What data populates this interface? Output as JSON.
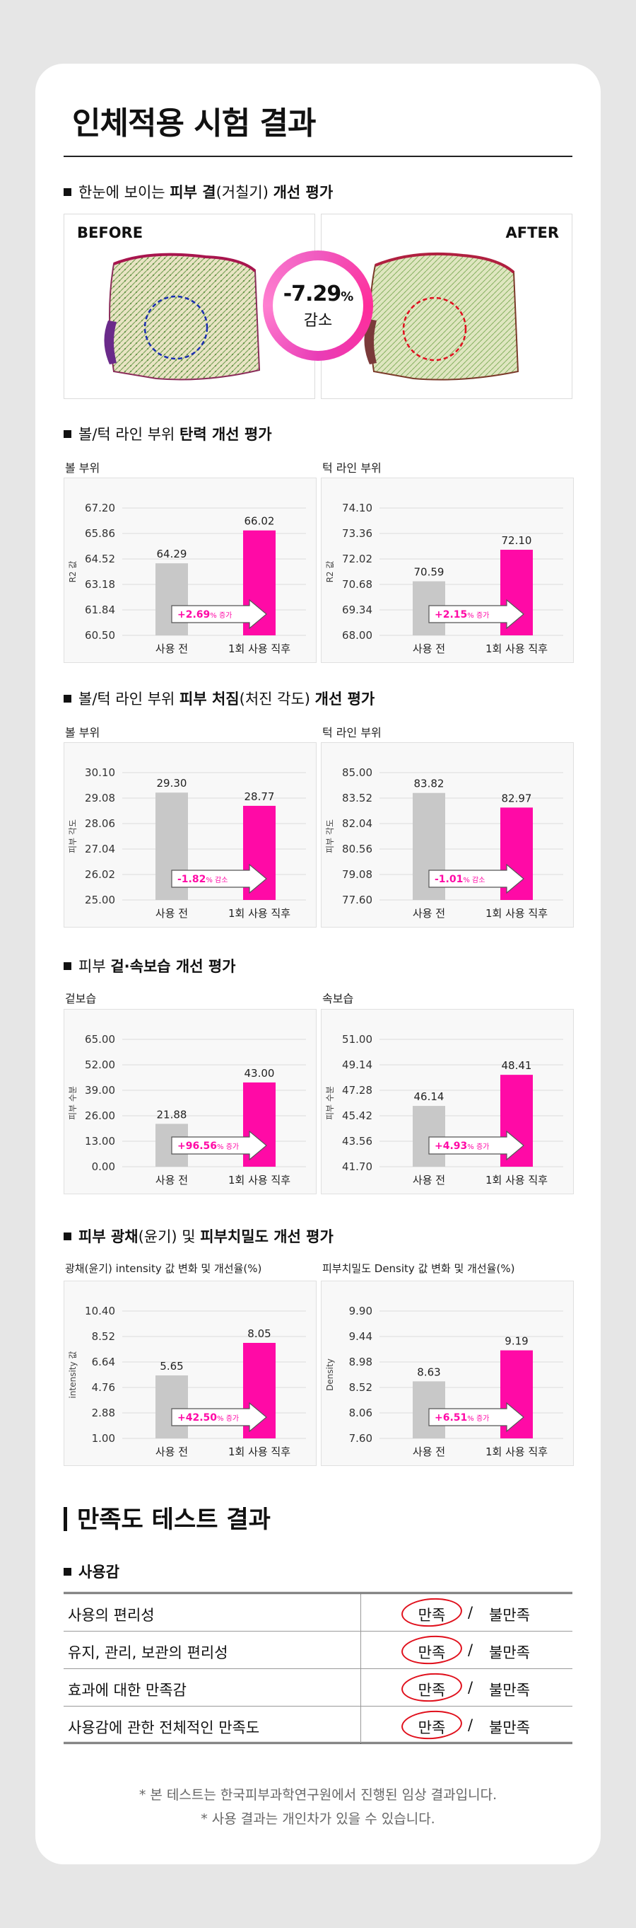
{
  "page_title": "인체적용 시험 결과",
  "sec1": {
    "pre": "한눈에 보이는 ",
    "b1": "피부 결",
    "mid": "(거칠기) ",
    "b2": "개선 평가"
  },
  "before_label": "BEFORE",
  "after_label": "AFTER",
  "badge": {
    "value": "-7.29",
    "unit": "%",
    "text": "감소"
  },
  "sec2": {
    "pre": "볼/턱 라인 부위 ",
    "b1": "탄력 개선 평가"
  },
  "sec3": {
    "pre": "볼/턱 라인 부위 ",
    "b1": "피부 처짐",
    "mid": "(처진 각도) ",
    "b2": "개선 평가"
  },
  "sec4": {
    "pre": "피부 ",
    "b1": "겉·속보습 개선 평가"
  },
  "sec5": {
    "b1": "피부 광채",
    "mid": "(윤기) 및 ",
    "b2": "피부치밀도 개선 평가"
  },
  "colors": {
    "accent": "#ff0aa6",
    "before_bar": "#c8c8c8"
  },
  "chart_data": [
    {
      "type": "bar",
      "subtitle": "볼 부위",
      "ylabel": "R2 값",
      "categories": [
        "사용 전",
        "1회 사용 직후"
      ],
      "values": [
        64.29,
        66.02
      ],
      "value_labels": [
        "64.29",
        "66.02"
      ],
      "ticks": [
        "67.20",
        "65.86",
        "64.52",
        "63.18",
        "61.84",
        "60.50"
      ],
      "ylim": [
        60.5,
        67.2
      ],
      "change": {
        "value": "+2.69",
        "unit": "%",
        "word": "증가"
      }
    },
    {
      "type": "bar",
      "subtitle": "턱 라인 부위",
      "ylabel": "R2 값",
      "categories": [
        "사용 전",
        "1회 사용 직후"
      ],
      "values": [
        70.59,
        72.1
      ],
      "value_labels": [
        "70.59",
        "72.10"
      ],
      "ticks": [
        "74.10",
        "73.36",
        "72.02",
        "70.68",
        "69.34",
        "68.00"
      ],
      "ylim": [
        68.0,
        74.1
      ],
      "change": {
        "value": "+2.15",
        "unit": "%",
        "word": "증가"
      }
    },
    {
      "type": "bar",
      "subtitle": "볼 부위",
      "ylabel": "피부 각도",
      "categories": [
        "사용 전",
        "1회 사용 직후"
      ],
      "values": [
        29.3,
        28.77
      ],
      "value_labels": [
        "29.30",
        "28.77"
      ],
      "ticks": [
        "30.10",
        "29.08",
        "28.06",
        "27.04",
        "26.02",
        "25.00"
      ],
      "ylim": [
        25.0,
        30.1
      ],
      "change": {
        "value": "-1.82",
        "unit": "%",
        "word": "감소"
      }
    },
    {
      "type": "bar",
      "subtitle": "턱 라인 부위",
      "ylabel": "피부 각도",
      "categories": [
        "사용 전",
        "1회 사용 직후"
      ],
      "values": [
        83.82,
        82.97
      ],
      "value_labels": [
        "83.82",
        "82.97"
      ],
      "ticks": [
        "85.00",
        "83.52",
        "82.04",
        "80.56",
        "79.08",
        "77.60"
      ],
      "ylim": [
        77.6,
        85.0
      ],
      "change": {
        "value": "-1.01",
        "unit": "%",
        "word": "감소"
      }
    },
    {
      "type": "bar",
      "subtitle": "겉보습",
      "ylabel": "피부 수분",
      "categories": [
        "사용 전",
        "1회 사용 직후"
      ],
      "values": [
        21.88,
        43.0
      ],
      "value_labels": [
        "21.88",
        "43.00"
      ],
      "ticks": [
        "65.00",
        "52.00",
        "39.00",
        "26.00",
        "13.00",
        "0.00"
      ],
      "ylim": [
        0,
        65.0
      ],
      "change": {
        "value": "+96.56",
        "unit": "%",
        "word": "증가"
      }
    },
    {
      "type": "bar",
      "subtitle": "속보습",
      "ylabel": "피부 수분",
      "categories": [
        "사용 전",
        "1회 사용 직후"
      ],
      "values": [
        46.14,
        48.41
      ],
      "value_labels": [
        "46.14",
        "48.41"
      ],
      "ticks": [
        "51.00",
        "49.14",
        "47.28",
        "45.42",
        "43.56",
        "41.70"
      ],
      "ylim": [
        41.7,
        51.0
      ],
      "change": {
        "value": "+4.93",
        "unit": "%",
        "word": "증가"
      }
    },
    {
      "type": "bar",
      "subtitle": "광채(윤기) intensity 값 변화 및 개선율(%)",
      "ylabel": "intensity 값",
      "categories": [
        "사용 전",
        "1회 사용 직후"
      ],
      "values": [
        5.65,
        8.05
      ],
      "value_labels": [
        "5.65",
        "8.05"
      ],
      "ticks": [
        "10.40",
        "8.52",
        "6.64",
        "4.76",
        "2.88",
        "1.00"
      ],
      "ylim": [
        1.0,
        10.4
      ],
      "change": {
        "value": "+42.50",
        "unit": "%",
        "word": "증가"
      }
    },
    {
      "type": "bar",
      "subtitle": "피부치밀도 Density 값 변화 및 개선율(%)",
      "ylabel": "Density",
      "categories": [
        "사용 전",
        "1회 사용 직후"
      ],
      "values": [
        8.63,
        9.19
      ],
      "value_labels": [
        "8.63",
        "9.19"
      ],
      "ticks": [
        "9.90",
        "9.44",
        "8.98",
        "8.52",
        "8.06",
        "7.60"
      ],
      "ylim": [
        7.6,
        9.9
      ],
      "change": {
        "value": "+6.51",
        "unit": "%",
        "word": "증가"
      }
    }
  ],
  "satisfaction": {
    "title": "만족도 테스트 결과",
    "section": "사용감",
    "yes": "만족",
    "slash": "/",
    "no": "불만족",
    "rows": [
      {
        "question": "사용의 편리성"
      },
      {
        "question": "유지, 관리, 보관의 편리성"
      },
      {
        "question": "효과에 대한 만족감"
      },
      {
        "question": "사용감에 관한 전체적인 만족도"
      }
    ]
  },
  "footnotes": [
    "* 본 테스트는 한국피부과학연구원에서 진행된 임상 결과입니다.",
    "* 사용 결과는 개인차가 있을 수 있습니다."
  ]
}
